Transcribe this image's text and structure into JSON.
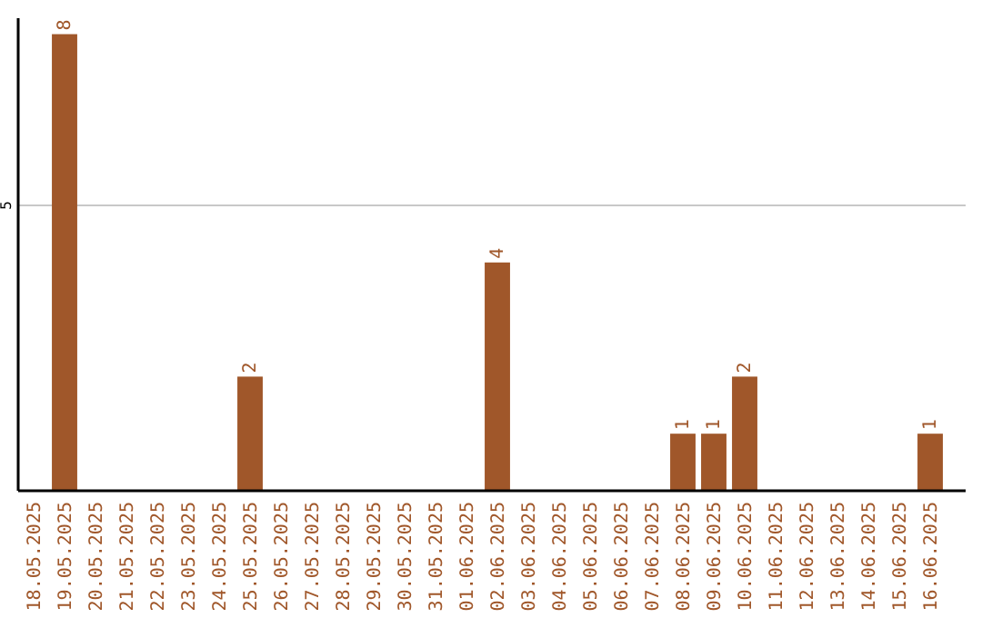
{
  "chart_data": {
    "type": "bar",
    "categories": [
      "18.05.2025",
      "19.05.2025",
      "20.05.2025",
      "21.05.2025",
      "22.05.2025",
      "23.05.2025",
      "24.05.2025",
      "25.05.2025",
      "26.05.2025",
      "27.05.2025",
      "28.05.2025",
      "29.05.2025",
      "30.05.2025",
      "31.05.2025",
      "01.06.2025",
      "02.06.2025",
      "03.06.2025",
      "04.06.2025",
      "05.06.2025",
      "06.06.2025",
      "07.06.2025",
      "08.06.2025",
      "09.06.2025",
      "10.06.2025",
      "11.06.2025",
      "12.06.2025",
      "13.06.2025",
      "14.06.2025",
      "15.06.2025",
      "16.06.2025"
    ],
    "values": [
      0,
      8,
      0,
      0,
      0,
      0,
      0,
      2,
      0,
      0,
      0,
      0,
      0,
      0,
      0,
      4,
      0,
      0,
      0,
      0,
      0,
      1,
      1,
      2,
      0,
      0,
      0,
      0,
      0,
      1
    ],
    "value_labels": [
      null,
      "8",
      null,
      null,
      null,
      null,
      null,
      "2",
      null,
      null,
      null,
      null,
      null,
      null,
      null,
      "4",
      null,
      null,
      null,
      null,
      null,
      "1",
      "1",
      "2",
      null,
      null,
      null,
      null,
      null,
      "1"
    ],
    "color": "#a0572a",
    "ylim": [
      0,
      8.28
    ],
    "yticks": [
      {
        "value": 0,
        "label": null
      },
      5
    ],
    "grid": "y"
  }
}
